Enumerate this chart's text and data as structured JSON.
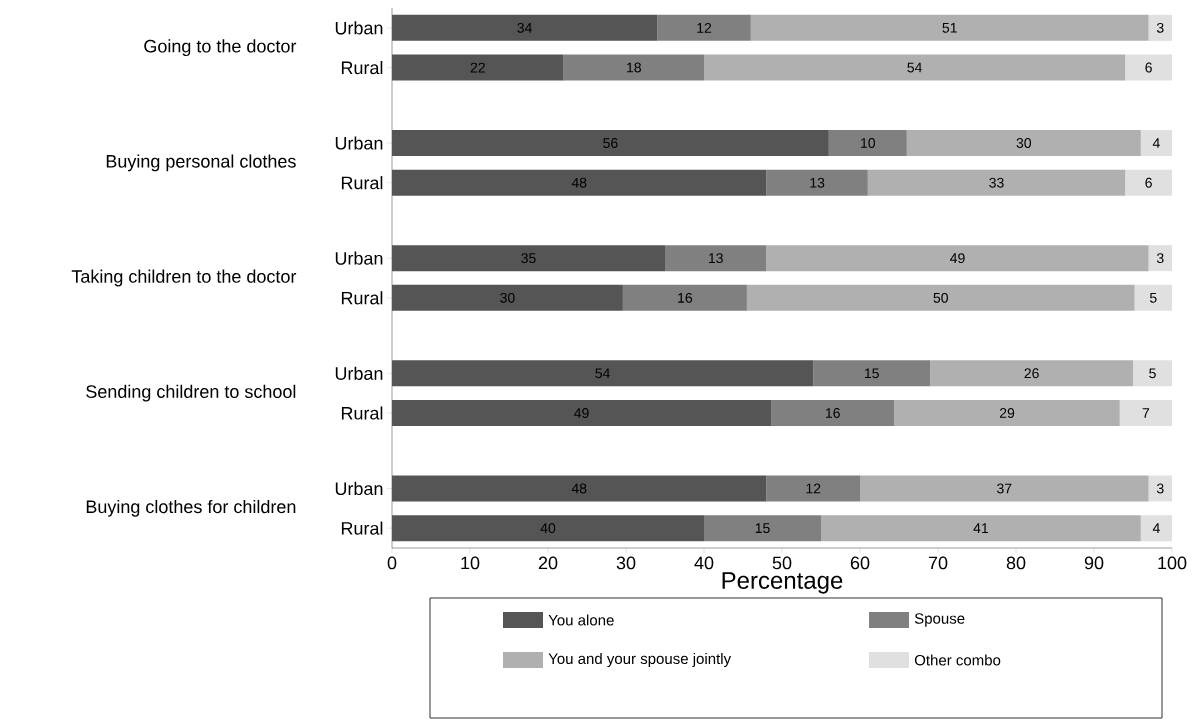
{
  "chart_data": {
    "type": "bar",
    "orientation": "horizontal",
    "stacked": true,
    "legend": "bottom",
    "grid": false,
    "xlabel": "Percentage",
    "categories": [
      "Urban",
      "Rural",
      "Urban",
      "Rural",
      "Urban",
      "Rural",
      "Urban",
      "Rural",
      "Urban",
      "Rural"
    ],
    "annotations": [
      "Going to the doctor",
      "Buying personal clothes",
      "Taking children to the doctor",
      "Sending children to school",
      "Buying clothes for children"
    ],
    "xlim": [
      0,
      100
    ],
    "xticks": [
      0,
      10,
      20,
      30,
      40,
      50,
      60,
      70,
      80,
      90,
      100
    ],
    "series": [
      {
        "name": "You alone",
        "color": "#555555",
        "values": [
          34,
          22,
          56,
          48,
          35,
          29.6,
          54,
          48.6,
          48,
          40
        ],
        "value_labels": [
          "34",
          "22",
          "56",
          "48",
          "35",
          "30",
          "54",
          "49",
          "48",
          "40"
        ]
      },
      {
        "name": "Spouse",
        "color": "#808080",
        "values": [
          12,
          18,
          10,
          13,
          13,
          15.9,
          15,
          15.8,
          12,
          15
        ],
        "value_labels": [
          "12",
          "18",
          "10",
          "13",
          "13",
          "16",
          "15",
          "16",
          "12",
          "15"
        ]
      },
      {
        "name": "You and your spouse jointly",
        "color": "#b0b0b0",
        "values": [
          51,
          54,
          30,
          33,
          49,
          49.7,
          26,
          28.9,
          37,
          41
        ],
        "value_labels": [
          "51",
          "54",
          "30",
          "33",
          "49",
          "50",
          "26",
          "29",
          "37",
          "41"
        ]
      },
      {
        "name": "Other combo",
        "color": "#e0e0e0",
        "values": [
          3,
          6,
          4,
          6,
          3,
          4.8,
          5,
          6.7,
          3,
          4
        ],
        "value_labels": [
          "3",
          "6",
          "4",
          "6",
          "3",
          "5",
          "5",
          "7",
          "3",
          "4"
        ]
      }
    ]
  }
}
